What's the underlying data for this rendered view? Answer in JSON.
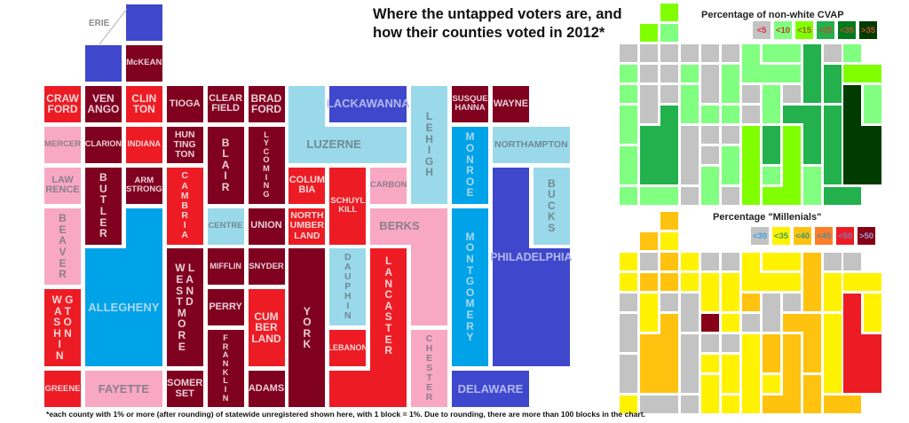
{
  "title": "Where the untapped voters are, and\nhow their counties voted in 2012*",
  "footnote": "*each county with 1% or more (after rounding) of statewide unregistered shown here, with 1 block = 1%. Due to rounding, there are more than 100 blocks in the chart.",
  "erie_label": "ERIE",
  "vote_colors": {
    "strong_rep": "#800020",
    "lean_rep": "#ed1c24",
    "slight_rep": "#f9a8c4",
    "slight_dem": "#99d9ea",
    "lean_dem": "#00a2e8",
    "strong_dem": "#3f48cc"
  },
  "vote_text_colors": {
    "strong_rep": "#e8d0d6",
    "lean_rep": "#f6d6d8",
    "slight_rep": "#8c7f88",
    "slight_dem": "#6f8a94",
    "lean_dem": "#a9d9ee",
    "strong_dem": "#b3b8ee"
  },
  "cvap": {
    "title": "Percentage of non-white CVAP",
    "legend": [
      {
        "label": "<5",
        "color": "#c3c3c3",
        "text": "#e03040"
      },
      {
        "label": "<10",
        "color": "#80ff80",
        "text": "#c04020"
      },
      {
        "label": "<15",
        "color": "#80ff00",
        "text": "#a06010"
      },
      {
        "label": "<25",
        "color": "#22b14c",
        "text": "#c05030"
      },
      {
        "label": "<35",
        "color": "#007a1e",
        "text": "#c05030"
      },
      {
        "label": ">35",
        "color": "#003c00",
        "text": "#c05030"
      }
    ]
  },
  "millennials": {
    "title": "Percentage \"Millenials\"",
    "legend": [
      {
        "label": "<30",
        "color": "#c3c3c3",
        "text": "#3aa0e0"
      },
      {
        "label": "<35",
        "color": "#fff200",
        "text": "#3aa050"
      },
      {
        "label": "<40",
        "color": "#ffc20e",
        "text": "#3a9a70"
      },
      {
        "label": "<45",
        "color": "#ff7f27",
        "text": "#5a8aa0"
      },
      {
        "label": "<50",
        "color": "#ed1c24",
        "text": "#8a70b0"
      },
      {
        "label": ">50",
        "color": "#880015",
        "text": "#9aa0e0"
      }
    ]
  },
  "chart_data": {
    "type": "heatmap",
    "title": "Where the untapped voters are, and how their counties voted in 2012*",
    "unit": "1 block = 1% of statewide unregistered",
    "counties": [
      {
        "name": "Erie",
        "label": "",
        "vote": "strong_dem",
        "cells": [
          [
            2,
            0
          ],
          [
            1,
            1
          ]
        ],
        "cvap": 2,
        "mill": 2
      },
      {
        "name": "McKean",
        "label": "McKEAN",
        "vote": "strong_rep",
        "cells": [
          [
            2,
            1
          ]
        ],
        "cvap": 1,
        "mill": 1
      },
      {
        "name": "Crawford",
        "label": "CRAW\nFORD",
        "vote": "lean_rep",
        "cells": [
          [
            0,
            2
          ]
        ],
        "cvap": 0,
        "mill": 1
      },
      {
        "name": "Venango",
        "label": "VEN\nANGO",
        "vote": "strong_rep",
        "cells": [
          [
            1,
            2
          ]
        ],
        "cvap": 0,
        "mill": 0
      },
      {
        "name": "Clinton",
        "label": "CLIN\nTON",
        "vote": "lean_rep",
        "cells": [
          [
            2,
            2
          ]
        ],
        "cvap": 0,
        "mill": 2
      },
      {
        "name": "Tioga",
        "label": "TIOGA",
        "vote": "strong_rep",
        "cells": [
          [
            3,
            2
          ]
        ],
        "cvap": 0,
        "mill": 1
      },
      {
        "name": "Clearfield",
        "label": "CLEAR\nFIELD",
        "vote": "strong_rep",
        "cells": [
          [
            4,
            2
          ]
        ],
        "cvap": 0,
        "mill": 0
      },
      {
        "name": "Bradford",
        "label": "BRAD\nFORD",
        "vote": "strong_rep",
        "cells": [
          [
            5,
            2
          ]
        ],
        "cvap": 0,
        "mill": 0
      },
      {
        "name": "Luzerne",
        "label": "LUZERNE",
        "vote": "slight_dem",
        "cells": [
          [
            6,
            2
          ],
          [
            6,
            3
          ],
          [
            7,
            3
          ],
          [
            8,
            3
          ]
        ],
        "cvap": 1,
        "mill": 1
      },
      {
        "name": "Lackawanna",
        "label": "LACKAWANNA",
        "vote": "strong_dem",
        "cells": [
          [
            7,
            2
          ],
          [
            8,
            2
          ]
        ],
        "cvap": 1,
        "mill": 1
      },
      {
        "name": "Lehigh",
        "label": "L\nE\nH\nI\nG\nH",
        "vote": "slight_dem",
        "cells": [
          [
            9,
            2
          ],
          [
            9,
            3
          ],
          [
            9,
            4
          ]
        ],
        "cvap": 3,
        "mill": 2
      },
      {
        "name": "Susquehanna",
        "label": "SUSQUE\nHANNA",
        "vote": "strong_rep",
        "cells": [
          [
            10,
            2
          ]
        ],
        "cvap": 0,
        "mill": 0
      },
      {
        "name": "Wayne",
        "label": "WAYNE",
        "vote": "strong_rep",
        "cells": [
          [
            11,
            2
          ]
        ],
        "cvap": 1,
        "mill": 0
      },
      {
        "name": "Mercer",
        "label": "MERCER",
        "vote": "slight_rep",
        "cells": [
          [
            0,
            3
          ]
        ],
        "cvap": 1,
        "mill": 1
      },
      {
        "name": "Clarion",
        "label": "CLARION",
        "vote": "strong_rep",
        "cells": [
          [
            1,
            3
          ]
        ],
        "cvap": 0,
        "mill": 2
      },
      {
        "name": "Indiana",
        "label": "INDIANA",
        "vote": "lean_rep",
        "cells": [
          [
            2,
            3
          ]
        ],
        "cvap": 0,
        "mill": 2
      },
      {
        "name": "Huntingdon",
        "label": "HUN\nTING\nTON",
        "vote": "strong_rep",
        "cells": [
          [
            3,
            3
          ]
        ],
        "cvap": 1,
        "mill": 1
      },
      {
        "name": "Blair",
        "label": "B\nL\nA\nI\nR",
        "vote": "strong_rep",
        "cells": [
          [
            4,
            3
          ],
          [
            4,
            4
          ]
        ],
        "cvap": 0,
        "mill": 1
      },
      {
        "name": "Lycoming",
        "label": "L\nY\nC\nO\nM\nI\nN\nG",
        "vote": "strong_rep",
        "cells": [
          [
            5,
            3
          ],
          [
            5,
            4
          ]
        ],
        "cvap": 1,
        "mill": 1
      },
      {
        "name": "Monroe",
        "label": "M\nO\nN\nR\nO\nE",
        "vote": "lean_dem",
        "cells": [
          [
            10,
            3
          ],
          [
            10,
            4
          ]
        ],
        "cvap": 3,
        "mill": 1
      },
      {
        "name": "Northampton",
        "label": "NORTHAMPTON",
        "vote": "slight_dem",
        "cells": [
          [
            11,
            3
          ],
          [
            12,
            3
          ]
        ],
        "cvap": 2,
        "mill": 1
      },
      {
        "name": "Lawrence",
        "label": "LAW\nRENCE",
        "vote": "slight_rep",
        "cells": [
          [
            0,
            4
          ]
        ],
        "cvap": 1,
        "mill": 0
      },
      {
        "name": "Butler",
        "label": "B\nU\nT\nL\nE\nR",
        "vote": "strong_rep",
        "cells": [
          [
            1,
            4
          ],
          [
            1,
            5
          ]
        ],
        "cvap": 0,
        "mill": 1
      },
      {
        "name": "Armstrong",
        "label": "ARM\nSTRONG",
        "vote": "strong_rep",
        "cells": [
          [
            2,
            4
          ]
        ],
        "cvap": 0,
        "mill": 0
      },
      {
        "name": "Cambria",
        "label": "C\nA\nM\nB\nR\nI\nA",
        "vote": "lean_rep",
        "cells": [
          [
            3,
            4
          ],
          [
            3,
            5
          ]
        ],
        "cvap": 1,
        "mill": 0
      },
      {
        "name": "Columbia",
        "label": "COLUM\nBIA",
        "vote": "lean_rep",
        "cells": [
          [
            6,
            4
          ]
        ],
        "cvap": 0,
        "mill": 2
      },
      {
        "name": "Schuylkill",
        "label": "SCHUYL\nKILL",
        "vote": "lean_rep",
        "cells": [
          [
            7,
            4
          ],
          [
            7,
            5
          ]
        ],
        "cvap": 1,
        "mill": 0
      },
      {
        "name": "Carbon",
        "label": "CARBON",
        "vote": "slight_rep",
        "cells": [
          [
            8,
            4
          ]
        ],
        "cvap": 0,
        "mill": 0
      },
      {
        "name": "Philadelphia",
        "label": "PHILADELPHIA",
        "vote": "strong_dem",
        "cells": [
          [
            11,
            4
          ],
          [
            11,
            5
          ],
          [
            11,
            6
          ],
          [
            12,
            6
          ],
          [
            11,
            7
          ],
          [
            12,
            7
          ],
          [
            11,
            8
          ],
          [
            12,
            8
          ]
        ],
        "cvap": 5,
        "mill": 4
      },
      {
        "name": "Bucks",
        "label": "B\nU\nC\nK\nS",
        "vote": "slight_dem",
        "cells": [
          [
            12,
            4
          ],
          [
            12,
            5
          ]
        ],
        "cvap": 1,
        "mill": 1
      },
      {
        "name": "Beaver",
        "label": "B\nE\nA\nV\nE\nR",
        "vote": "slight_rep",
        "cells": [
          [
            0,
            5
          ],
          [
            0,
            6
          ]
        ],
        "cvap": 1,
        "mill": 0
      },
      {
        "name": "Allegheny",
        "label": "ALLEGHENY",
        "vote": "lean_dem",
        "cells": [
          [
            2,
            5
          ],
          [
            1,
            6
          ],
          [
            2,
            6
          ],
          [
            1,
            7
          ],
          [
            2,
            7
          ],
          [
            1,
            8
          ],
          [
            2,
            8
          ]
        ],
        "cvap": 3,
        "mill": 2
      },
      {
        "name": "Centre",
        "label": "CENTRE",
        "vote": "slight_dem",
        "cells": [
          [
            4,
            5
          ]
        ],
        "cvap": 1,
        "mill": 5
      },
      {
        "name": "Union",
        "label": "UNION",
        "vote": "strong_rep",
        "cells": [
          [
            5,
            5
          ]
        ],
        "cvap": 1,
        "mill": 1
      },
      {
        "name": "Northumberland",
        "label": "NORTH\nUMBER\nLAND",
        "vote": "lean_rep",
        "cells": [
          [
            6,
            5
          ]
        ],
        "cvap": 0,
        "mill": 0
      },
      {
        "name": "Berks",
        "label": "BERKS",
        "vote": "slight_rep",
        "cells": [
          [
            8,
            5
          ],
          [
            9,
            5
          ],
          [
            9,
            6
          ],
          [
            9,
            7
          ]
        ],
        "cvap": 3,
        "mill": 2
      },
      {
        "name": "Montgomery",
        "label": "M\nO\nN\nT\nG\nO\nM\nE\nR\nY",
        "vote": "lean_dem",
        "cells": [
          [
            10,
            5
          ],
          [
            10,
            6
          ],
          [
            10,
            7
          ],
          [
            10,
            8
          ]
        ],
        "cvap": 3,
        "mill": 1
      },
      {
        "name": "Westmoreland",
        "label": "W L\nE A\nS N\nT D\nM  \nO  \nR  \nE  ",
        "vote": "strong_rep",
        "cells": [
          [
            3,
            6
          ],
          [
            3,
            7
          ],
          [
            3,
            8
          ]
        ],
        "cvap": 0,
        "mill": 0
      },
      {
        "name": "Mifflin",
        "label": "MIFFLIN",
        "vote": "strong_rep",
        "cells": [
          [
            4,
            6
          ]
        ],
        "cvap": 0,
        "mill": 0
      },
      {
        "name": "Snyder",
        "label": "SNYDER",
        "vote": "strong_rep",
        "cells": [
          [
            5,
            6
          ]
        ],
        "cvap": 0,
        "mill": 0
      },
      {
        "name": "York",
        "label": "Y\nO\nR\nK",
        "vote": "strong_rep",
        "cells": [
          [
            6,
            6
          ],
          [
            6,
            7
          ],
          [
            6,
            8
          ],
          [
            6,
            9
          ]
        ],
        "cvap": 2,
        "mill": 1
      },
      {
        "name": "Dauphin",
        "label": "D\nA\nU\nP\nH\nI\nN",
        "vote": "slight_dem",
        "cells": [
          [
            7,
            6
          ],
          [
            7,
            7
          ]
        ],
        "cvap": 3,
        "mill": 2
      },
      {
        "name": "Lancaster",
        "label": "L\nA\nN\nC\nA\nS\nT\nE\nR",
        "vote": "lean_rep",
        "cells": [
          [
            8,
            6
          ],
          [
            8,
            7
          ],
          [
            8,
            8
          ],
          [
            8,
            9
          ],
          [
            7,
            9
          ]
        ],
        "cvap": 2,
        "mill": 2
      },
      {
        "name": "Washington",
        "label": "W G\nA T\nS O\nH N\nI  \nN  ",
        "vote": "lean_rep",
        "cells": [
          [
            0,
            7
          ],
          [
            0,
            8
          ]
        ],
        "cvap": 1,
        "mill": 0
      },
      {
        "name": "Perry",
        "label": "PERRY",
        "vote": "strong_rep",
        "cells": [
          [
            4,
            7
          ]
        ],
        "cvap": 0,
        "mill": 1
      },
      {
        "name": "Cumberland",
        "label": "CUM\nBER\nLAND",
        "vote": "lean_rep",
        "cells": [
          [
            5,
            7
          ],
          [
            5,
            8
          ]
        ],
        "cvap": 1,
        "mill": 1
      },
      {
        "name": "Lebanon",
        "label": "LEBANON",
        "vote": "lean_rep",
        "cells": [
          [
            7,
            8
          ]
        ],
        "cvap": 1,
        "mill": 1
      },
      {
        "name": "Chester",
        "label": "C\nH\nE\nS\nT\nE\nR",
        "vote": "slight_rep",
        "cells": [
          [
            9,
            8
          ],
          [
            9,
            9
          ]
        ],
        "cvap": 1,
        "mill": 2
      },
      {
        "name": "Franklin",
        "label": "F\nR\nA\nN\nK\nL\nI\nN",
        "vote": "strong_rep",
        "cells": [
          [
            4,
            8
          ],
          [
            4,
            9
          ]
        ],
        "cvap": 1,
        "mill": 1
      },
      {
        "name": "Greene",
        "label": "GREENE",
        "vote": "lean_rep",
        "cells": [
          [
            0,
            9
          ]
        ],
        "cvap": 1,
        "mill": 1
      },
      {
        "name": "Fayette",
        "label": "FAYETTE",
        "vote": "slight_rep",
        "cells": [
          [
            1,
            9
          ],
          [
            2,
            9
          ]
        ],
        "cvap": 1,
        "mill": 0
      },
      {
        "name": "Somerset",
        "label": "SOMER\nSET",
        "vote": "strong_rep",
        "cells": [
          [
            3,
            9
          ]
        ],
        "cvap": 0,
        "mill": 0
      },
      {
        "name": "Adams",
        "label": "ADAMS",
        "vote": "strong_rep",
        "cells": [
          [
            5,
            9
          ]
        ],
        "cvap": 0,
        "mill": 1
      },
      {
        "name": "Delaware",
        "label": "DELAWARE",
        "vote": "strong_dem",
        "cells": [
          [
            10,
            9
          ],
          [
            11,
            9
          ]
        ],
        "cvap": 3,
        "mill": 2
      }
    ]
  }
}
